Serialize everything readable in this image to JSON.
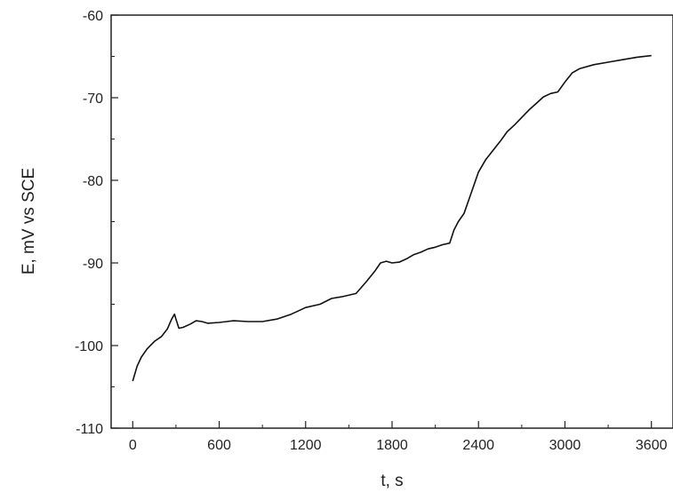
{
  "chart_data": {
    "type": "line",
    "title": "",
    "xlabel": "t, s",
    "ylabel": "E, mV vs SCE",
    "xlim": [
      -150,
      3750
    ],
    "ylim": [
      -110,
      -60
    ],
    "xticks": [
      0,
      600,
      1200,
      1800,
      2400,
      3000,
      3600
    ],
    "yticks": [
      -110,
      -100,
      -90,
      -80,
      -70,
      -60
    ],
    "grid": false,
    "legend": "none",
    "line_color": "#111111",
    "series": [
      {
        "x": [
          0,
          30,
          60,
          100,
          150,
          200,
          240,
          270,
          290,
          300,
          320,
          350,
          400,
          440,
          480,
          520,
          600,
          700,
          800,
          900,
          1000,
          1100,
          1200,
          1300,
          1380,
          1450,
          1550,
          1620,
          1680,
          1720,
          1760,
          1800,
          1850,
          1900,
          1950,
          2000,
          2050,
          2100,
          2150,
          2200,
          2230,
          2260,
          2300,
          2350,
          2400,
          2450,
          2500,
          2550,
          2600,
          2650,
          2700,
          2750,
          2800,
          2850,
          2900,
          2950,
          3000,
          3050,
          3100,
          3200,
          3300,
          3400,
          3500,
          3600
        ],
        "y": [
          -104.3,
          -102.5,
          -101.4,
          -100.4,
          -99.5,
          -98.9,
          -98.0,
          -96.8,
          -96.2,
          -96.8,
          -97.9,
          -97.8,
          -97.4,
          -97.0,
          -97.1,
          -97.3,
          -97.2,
          -97.0,
          -97.1,
          -97.1,
          -96.8,
          -96.2,
          -95.4,
          -95.0,
          -94.3,
          -94.1,
          -93.7,
          -92.3,
          -91.0,
          -90.0,
          -89.8,
          -90.0,
          -89.9,
          -89.5,
          -89.0,
          -88.7,
          -88.3,
          -88.1,
          -87.8,
          -87.6,
          -86.0,
          -85.0,
          -84.0,
          -81.5,
          -79.0,
          -77.5,
          -76.4,
          -75.3,
          -74.1,
          -73.3,
          -72.4,
          -71.5,
          -70.7,
          -69.9,
          -69.5,
          -69.3,
          -68.1,
          -67.0,
          -66.5,
          -66.0,
          -65.7,
          -65.4,
          -65.1,
          -64.9
        ]
      }
    ]
  }
}
